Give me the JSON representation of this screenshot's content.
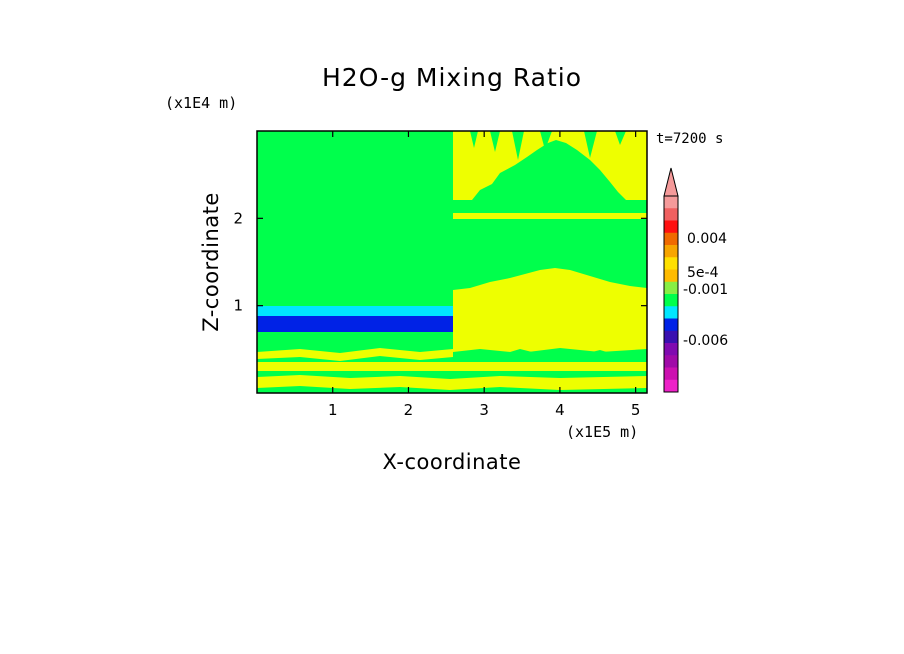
{
  "chart_data": {
    "type": "heatmap",
    "title": "H2O-g Mixing Ratio",
    "xlabel": "X-coordinate",
    "ylabel": "Z-coordinate",
    "x_unit": "(x1E5 m)",
    "y_unit": "(x1E4 m)",
    "time_label": "t=7200 s",
    "xlim": [
      0,
      5.15
    ],
    "ylim": [
      0,
      3.0
    ],
    "x_ticks": [
      1,
      2,
      3,
      4,
      5
    ],
    "y_ticks": [
      1,
      2
    ],
    "x_tick_labels": [
      "1",
      "2",
      "3",
      "4",
      "5"
    ],
    "y_tick_labels": [
      "1",
      "2"
    ],
    "field_colors": {
      "green": "#00ff4c",
      "yellow": "#eeff00",
      "cyan": "#00e6ff",
      "blue": "#0022e6"
    },
    "colorbar": {
      "levels": [
        "0.004",
        "5e-4",
        "-0.001",
        "-0.006"
      ],
      "colors_top_to_bottom": [
        "#f59a9a",
        "#f06060",
        "#ff1010",
        "#f06a00",
        "#f7a500",
        "#ffe000",
        "#ffbb00",
        "#88ee44",
        "#00ff4c",
        "#00e6ff",
        "#0022e6",
        "#3a10b0",
        "#800ab0",
        "#a00aa8",
        "#cc10b0",
        "#ee22c8"
      ]
    }
  }
}
